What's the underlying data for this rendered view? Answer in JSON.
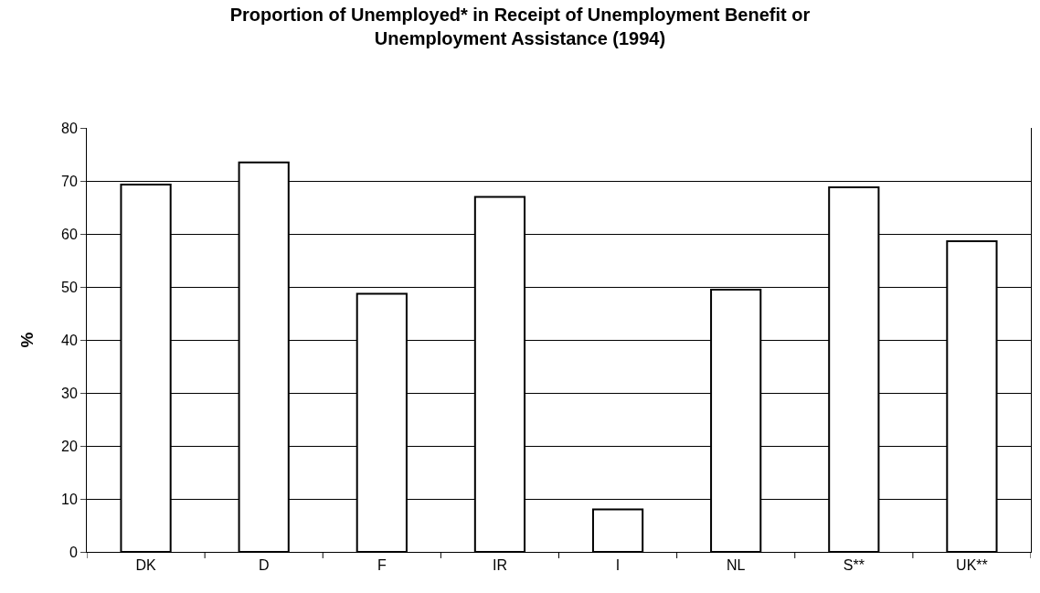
{
  "chart_data": {
    "type": "bar",
    "title": "Proportion of Unemployed* in Receipt of Unemployment Benefit or\nUnemployment Assistance (1994)",
    "ylabel": "%",
    "categories": [
      "DK",
      "D",
      "F",
      "IR",
      "I",
      "NL",
      "S**",
      "UK**"
    ],
    "values": [
      69.3,
      73.5,
      48.7,
      67.0,
      8.0,
      49.5,
      68.8,
      58.6
    ],
    "color": "#ffffff",
    "ylim": [
      0,
      80
    ],
    "yticks": [
      0,
      10,
      20,
      30,
      40,
      50,
      60,
      70,
      80
    ],
    "grid": "y"
  }
}
